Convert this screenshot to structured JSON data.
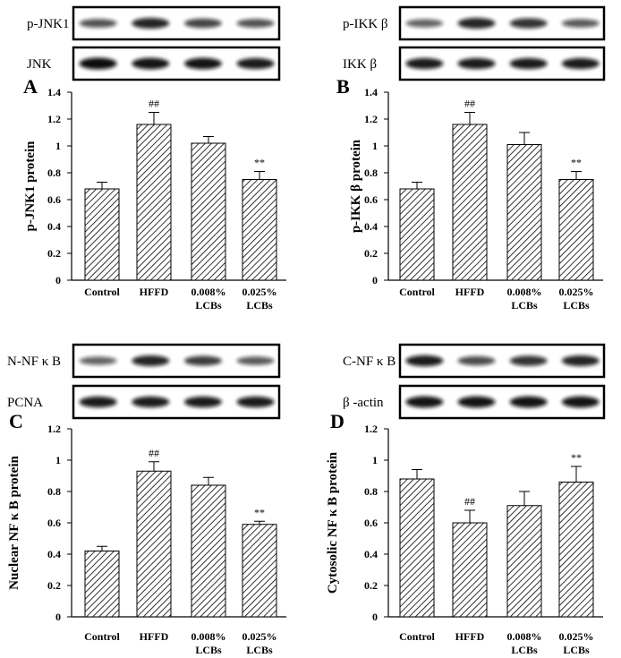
{
  "colors": {
    "ink": "#000000",
    "background": "#ffffff",
    "blot_band": "#111111"
  },
  "chart_data": [
    {
      "type": "bar",
      "panel_label": "A",
      "ylabel": "p-JNK1 protein",
      "categories": [
        [
          "Control"
        ],
        [
          "HFFD"
        ],
        [
          "0.008%",
          "LCBs"
        ],
        [
          "0.025%",
          "LCBs"
        ]
      ],
      "values": [
        0.68,
        1.16,
        1.02,
        0.75
      ],
      "errors": [
        0.05,
        0.09,
        0.05,
        0.06
      ],
      "significance": [
        "",
        "##",
        "",
        "**"
      ],
      "ylim": [
        0,
        1.4
      ],
      "yticks": [
        "0",
        "0.2",
        "0.4",
        "0.6",
        "0.8",
        "1",
        "1.2",
        "1.4"
      ],
      "bar_fill": "diagonal-hatch",
      "blots": [
        {
          "label": "p-JNK1",
          "bands": [
            0.55,
            0.85,
            0.65,
            0.55
          ]
        },
        {
          "label": "JNK",
          "bands": [
            1.0,
            0.95,
            0.95,
            0.9
          ]
        }
      ]
    },
    {
      "type": "bar",
      "panel_label": "B",
      "ylabel": "p-IKK β protein",
      "categories": [
        [
          "Control"
        ],
        [
          "HFFD"
        ],
        [
          "0.008%",
          "LCBs"
        ],
        [
          "0.025%",
          "LCBs"
        ]
      ],
      "values": [
        0.68,
        1.16,
        1.01,
        0.75
      ],
      "errors": [
        0.05,
        0.09,
        0.09,
        0.06
      ],
      "significance": [
        "",
        "##",
        "",
        "**"
      ],
      "ylim": [
        0,
        1.4
      ],
      "yticks": [
        "0",
        "0.2",
        "0.4",
        "0.6",
        "0.8",
        "1",
        "1.2",
        "1.4"
      ],
      "bar_fill": "diagonal-hatch",
      "blots": [
        {
          "label": "p-IKK β",
          "bands": [
            0.45,
            0.85,
            0.75,
            0.5
          ]
        },
        {
          "label": "IKK β",
          "bands": [
            0.9,
            0.9,
            0.9,
            0.9
          ]
        }
      ]
    },
    {
      "type": "bar",
      "panel_label": "C",
      "ylabel": "Nuclear NF κ B protein",
      "categories": [
        [
          "Control"
        ],
        [
          "HFFD"
        ],
        [
          "0.008%",
          "LCBs"
        ],
        [
          "0.025%",
          "LCBs"
        ]
      ],
      "values": [
        0.42,
        0.93,
        0.84,
        0.59
      ],
      "errors": [
        0.03,
        0.06,
        0.05,
        0.02
      ],
      "significance": [
        "",
        "##",
        "",
        "**"
      ],
      "ylim": [
        0,
        1.2
      ],
      "yticks": [
        "0",
        "0.2",
        "0.4",
        "0.6",
        "0.8",
        "1",
        "1.2"
      ],
      "bar_fill": "diagonal-hatch",
      "blots": [
        {
          "label": "N-NF κ B",
          "bands": [
            0.45,
            0.85,
            0.7,
            0.5
          ]
        },
        {
          "label": "PCNA",
          "bands": [
            0.9,
            0.9,
            0.9,
            0.9
          ]
        }
      ]
    },
    {
      "type": "bar",
      "panel_label": "D",
      "ylabel": "Cytosolic NF κ B protein",
      "categories": [
        [
          "Control"
        ],
        [
          "HFFD"
        ],
        [
          "0.008%",
          "LCBs"
        ],
        [
          "0.025%",
          "LCBs"
        ]
      ],
      "values": [
        0.88,
        0.6,
        0.71,
        0.86
      ],
      "errors": [
        0.06,
        0.08,
        0.09,
        0.1
      ],
      "significance": [
        "",
        "##",
        "",
        "**"
      ],
      "ylim": [
        0,
        1.2
      ],
      "yticks": [
        "0",
        "0.2",
        "0.4",
        "0.6",
        "0.8",
        "1",
        "1.2"
      ],
      "bar_fill": "diagonal-hatch",
      "blots": [
        {
          "label": "C-NF κ B",
          "bands": [
            0.9,
            0.6,
            0.75,
            0.85
          ]
        },
        {
          "label": "β -actin",
          "bands": [
            0.95,
            0.95,
            0.95,
            0.95
          ]
        }
      ]
    }
  ]
}
